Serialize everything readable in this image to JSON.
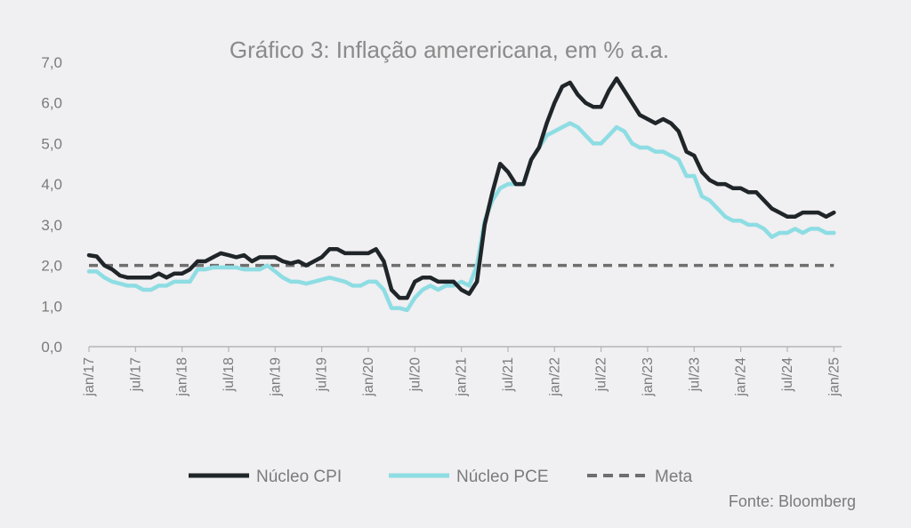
{
  "chart_data": {
    "type": "line",
    "title": "Gráfico 3: Inflação amerericana, em % a.a.",
    "source": "Fonte: Bloomberg",
    "ylim": [
      0,
      7
    ],
    "yticks": [
      "0,0",
      "1,0",
      "2,0",
      "3,0",
      "4,0",
      "5,0",
      "6,0",
      "7,0"
    ],
    "xlim": [
      "2017-01",
      "2025-02"
    ],
    "xticks": [
      {
        "label": "jan/17",
        "date": "2017-01"
      },
      {
        "label": "jul/17",
        "date": "2017-07"
      },
      {
        "label": "jan/18",
        "date": "2018-01"
      },
      {
        "label": "jul/18",
        "date": "2018-07"
      },
      {
        "label": "jan/19",
        "date": "2019-01"
      },
      {
        "label": "jul/19",
        "date": "2019-07"
      },
      {
        "label": "jan/20",
        "date": "2020-01"
      },
      {
        "label": "jul/20",
        "date": "2020-07"
      },
      {
        "label": "jan/21",
        "date": "2021-01"
      },
      {
        "label": "jul/21",
        "date": "2021-07"
      },
      {
        "label": "jan/22",
        "date": "2022-01"
      },
      {
        "label": "jul/22",
        "date": "2022-07"
      },
      {
        "label": "jan/23",
        "date": "2023-01"
      },
      {
        "label": "jul/23",
        "date": "2023-07"
      },
      {
        "label": "jan/24",
        "date": "2024-01"
      },
      {
        "label": "jul/24",
        "date": "2024-07"
      },
      {
        "label": "jan/25",
        "date": "2025-01"
      }
    ],
    "grid": false,
    "legend_position": "bottom",
    "series": [
      {
        "name": "Núcleo CPI",
        "color": "#1f2528",
        "style": "solid",
        "points": [
          [
            "2017-01",
            2.25
          ],
          [
            "2017-02",
            2.22
          ],
          [
            "2017-03",
            2.0
          ],
          [
            "2017-04",
            1.9
          ],
          [
            "2017-05",
            1.75
          ],
          [
            "2017-06",
            1.7
          ],
          [
            "2017-07",
            1.7
          ],
          [
            "2017-08",
            1.7
          ],
          [
            "2017-09",
            1.7
          ],
          [
            "2017-10",
            1.8
          ],
          [
            "2017-11",
            1.7
          ],
          [
            "2017-12",
            1.8
          ],
          [
            "2018-01",
            1.8
          ],
          [
            "2018-02",
            1.9
          ],
          [
            "2018-03",
            2.1
          ],
          [
            "2018-04",
            2.1
          ],
          [
            "2018-05",
            2.2
          ],
          [
            "2018-06",
            2.3
          ],
          [
            "2018-07",
            2.25
          ],
          [
            "2018-08",
            2.2
          ],
          [
            "2018-09",
            2.25
          ],
          [
            "2018-10",
            2.1
          ],
          [
            "2018-11",
            2.2
          ],
          [
            "2018-12",
            2.2
          ],
          [
            "2019-01",
            2.2
          ],
          [
            "2019-02",
            2.1
          ],
          [
            "2019-03",
            2.05
          ],
          [
            "2019-04",
            2.1
          ],
          [
            "2019-05",
            2.0
          ],
          [
            "2019-06",
            2.1
          ],
          [
            "2019-07",
            2.2
          ],
          [
            "2019-08",
            2.4
          ],
          [
            "2019-09",
            2.4
          ],
          [
            "2019-10",
            2.3
          ],
          [
            "2019-11",
            2.3
          ],
          [
            "2019-12",
            2.3
          ],
          [
            "2020-01",
            2.3
          ],
          [
            "2020-02",
            2.4
          ],
          [
            "2020-03",
            2.1
          ],
          [
            "2020-04",
            1.4
          ],
          [
            "2020-05",
            1.2
          ],
          [
            "2020-06",
            1.2
          ],
          [
            "2020-07",
            1.6
          ],
          [
            "2020-08",
            1.7
          ],
          [
            "2020-09",
            1.7
          ],
          [
            "2020-10",
            1.6
          ],
          [
            "2020-11",
            1.6
          ],
          [
            "2020-12",
            1.6
          ],
          [
            "2021-01",
            1.4
          ],
          [
            "2021-02",
            1.3
          ],
          [
            "2021-03",
            1.6
          ],
          [
            "2021-04",
            3.0
          ],
          [
            "2021-05",
            3.8
          ],
          [
            "2021-06",
            4.5
          ],
          [
            "2021-07",
            4.3
          ],
          [
            "2021-08",
            4.0
          ],
          [
            "2021-09",
            4.0
          ],
          [
            "2021-10",
            4.6
          ],
          [
            "2021-11",
            4.9
          ],
          [
            "2021-12",
            5.5
          ],
          [
            "2022-01",
            6.0
          ],
          [
            "2022-02",
            6.4
          ],
          [
            "2022-03",
            6.5
          ],
          [
            "2022-04",
            6.2
          ],
          [
            "2022-05",
            6.0
          ],
          [
            "2022-06",
            5.9
          ],
          [
            "2022-07",
            5.9
          ],
          [
            "2022-08",
            6.3
          ],
          [
            "2022-09",
            6.6
          ],
          [
            "2022-10",
            6.3
          ],
          [
            "2022-11",
            6.0
          ],
          [
            "2022-12",
            5.7
          ],
          [
            "2023-01",
            5.6
          ],
          [
            "2023-02",
            5.5
          ],
          [
            "2023-03",
            5.6
          ],
          [
            "2023-04",
            5.5
          ],
          [
            "2023-05",
            5.3
          ],
          [
            "2023-06",
            4.8
          ],
          [
            "2023-07",
            4.7
          ],
          [
            "2023-08",
            4.3
          ],
          [
            "2023-09",
            4.1
          ],
          [
            "2023-10",
            4.0
          ],
          [
            "2023-11",
            4.0
          ],
          [
            "2023-12",
            3.9
          ],
          [
            "2024-01",
            3.9
          ],
          [
            "2024-02",
            3.8
          ],
          [
            "2024-03",
            3.8
          ],
          [
            "2024-04",
            3.6
          ],
          [
            "2024-05",
            3.4
          ],
          [
            "2024-06",
            3.3
          ],
          [
            "2024-07",
            3.2
          ],
          [
            "2024-08",
            3.2
          ],
          [
            "2024-09",
            3.3
          ],
          [
            "2024-10",
            3.3
          ],
          [
            "2024-11",
            3.3
          ],
          [
            "2024-12",
            3.2
          ],
          [
            "2025-01",
            3.3
          ]
        ]
      },
      {
        "name": "Núcleo PCE",
        "color": "#8ddde3",
        "style": "solid",
        "points": [
          [
            "2017-01",
            1.85
          ],
          [
            "2017-02",
            1.85
          ],
          [
            "2017-03",
            1.7
          ],
          [
            "2017-04",
            1.6
          ],
          [
            "2017-05",
            1.55
          ],
          [
            "2017-06",
            1.5
          ],
          [
            "2017-07",
            1.5
          ],
          [
            "2017-08",
            1.4
          ],
          [
            "2017-09",
            1.4
          ],
          [
            "2017-10",
            1.5
          ],
          [
            "2017-11",
            1.5
          ],
          [
            "2017-12",
            1.6
          ],
          [
            "2018-01",
            1.6
          ],
          [
            "2018-02",
            1.6
          ],
          [
            "2018-03",
            1.9
          ],
          [
            "2018-04",
            1.9
          ],
          [
            "2018-05",
            1.95
          ],
          [
            "2018-06",
            1.95
          ],
          [
            "2018-07",
            1.95
          ],
          [
            "2018-08",
            1.95
          ],
          [
            "2018-09",
            1.9
          ],
          [
            "2018-10",
            1.9
          ],
          [
            "2018-11",
            1.9
          ],
          [
            "2018-12",
            2.0
          ],
          [
            "2019-01",
            1.85
          ],
          [
            "2019-02",
            1.7
          ],
          [
            "2019-03",
            1.6
          ],
          [
            "2019-04",
            1.6
          ],
          [
            "2019-05",
            1.55
          ],
          [
            "2019-06",
            1.6
          ],
          [
            "2019-07",
            1.65
          ],
          [
            "2019-08",
            1.7
          ],
          [
            "2019-09",
            1.65
          ],
          [
            "2019-10",
            1.6
          ],
          [
            "2019-11",
            1.5
          ],
          [
            "2019-12",
            1.5
          ],
          [
            "2020-01",
            1.6
          ],
          [
            "2020-02",
            1.6
          ],
          [
            "2020-03",
            1.4
          ],
          [
            "2020-04",
            0.95
          ],
          [
            "2020-05",
            0.95
          ],
          [
            "2020-06",
            0.9
          ],
          [
            "2020-07",
            1.2
          ],
          [
            "2020-08",
            1.4
          ],
          [
            "2020-09",
            1.5
          ],
          [
            "2020-10",
            1.4
          ],
          [
            "2020-11",
            1.5
          ],
          [
            "2020-12",
            1.5
          ],
          [
            "2021-01",
            1.6
          ],
          [
            "2021-02",
            1.5
          ],
          [
            "2021-03",
            2.0
          ],
          [
            "2021-04",
            3.1
          ],
          [
            "2021-05",
            3.6
          ],
          [
            "2021-06",
            3.9
          ],
          [
            "2021-07",
            4.0
          ],
          [
            "2021-08",
            4.0
          ],
          [
            "2021-09",
            4.0
          ],
          [
            "2021-10",
            4.6
          ],
          [
            "2021-11",
            4.9
          ],
          [
            "2021-12",
            5.2
          ],
          [
            "2022-01",
            5.3
          ],
          [
            "2022-02",
            5.4
          ],
          [
            "2022-03",
            5.5
          ],
          [
            "2022-04",
            5.4
          ],
          [
            "2022-05",
            5.2
          ],
          [
            "2022-06",
            5.0
          ],
          [
            "2022-07",
            5.0
          ],
          [
            "2022-08",
            5.2
          ],
          [
            "2022-09",
            5.4
          ],
          [
            "2022-10",
            5.3
          ],
          [
            "2022-11",
            5.0
          ],
          [
            "2022-12",
            4.9
          ],
          [
            "2023-01",
            4.9
          ],
          [
            "2023-02",
            4.8
          ],
          [
            "2023-03",
            4.8
          ],
          [
            "2023-04",
            4.7
          ],
          [
            "2023-05",
            4.6
          ],
          [
            "2023-06",
            4.2
          ],
          [
            "2023-07",
            4.2
          ],
          [
            "2023-08",
            3.7
          ],
          [
            "2023-09",
            3.6
          ],
          [
            "2023-10",
            3.4
          ],
          [
            "2023-11",
            3.2
          ],
          [
            "2023-12",
            3.1
          ],
          [
            "2024-01",
            3.1
          ],
          [
            "2024-02",
            3.0
          ],
          [
            "2024-03",
            3.0
          ],
          [
            "2024-04",
            2.9
          ],
          [
            "2024-05",
            2.7
          ],
          [
            "2024-06",
            2.8
          ],
          [
            "2024-07",
            2.8
          ],
          [
            "2024-08",
            2.9
          ],
          [
            "2024-09",
            2.8
          ],
          [
            "2024-10",
            2.9
          ],
          [
            "2024-11",
            2.9
          ],
          [
            "2024-12",
            2.8
          ],
          [
            "2025-01",
            2.8
          ]
        ]
      },
      {
        "name": "Meta",
        "color": "#6e6e6e",
        "style": "dashed",
        "points": [
          [
            "2017-01",
            2.0
          ],
          [
            "2025-01",
            2.0
          ]
        ]
      }
    ]
  }
}
